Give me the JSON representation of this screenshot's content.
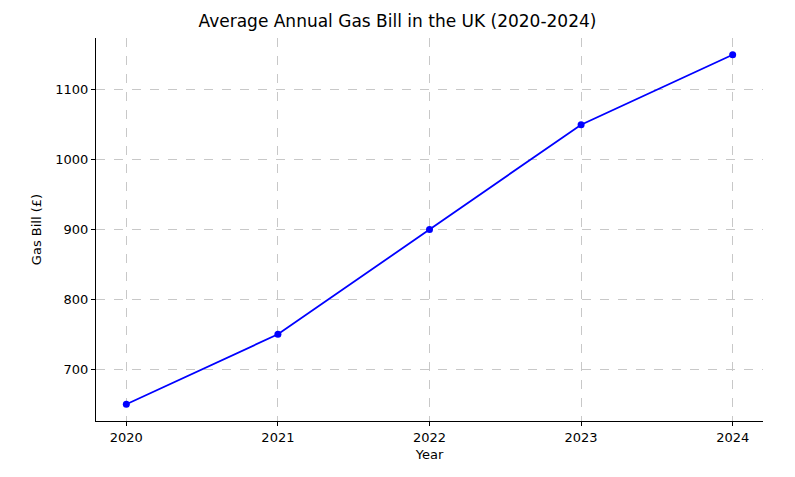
{
  "chart_data": {
    "type": "line",
    "title": "Average Annual Gas Bill in the UK (2020-2024)",
    "x_label": "Year",
    "y_label": "Gas Bill (£)",
    "x": [
      2020,
      2021,
      2022,
      2023,
      2024
    ],
    "values": [
      650,
      750,
      900,
      1050,
      1150
    ],
    "color": "#0000ff",
    "marker": "circle",
    "line_style": "solid",
    "xlim": [
      2019.8,
      2024.2
    ],
    "xticks": [
      2020,
      2021,
      2022,
      2023,
      2024
    ],
    "ylim": [
      626,
      1174
    ],
    "yticks": [
      700,
      800,
      900,
      1000,
      1100
    ],
    "grid": true
  }
}
